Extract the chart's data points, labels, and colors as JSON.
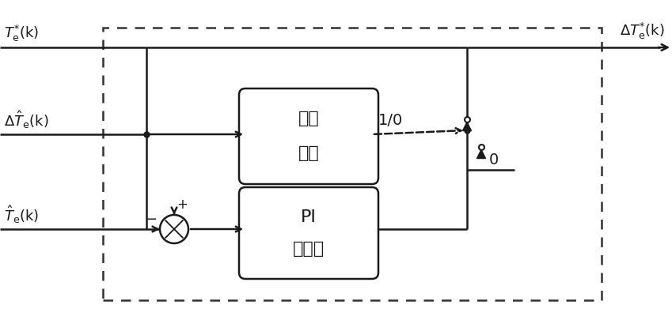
{
  "bg_color": "#ffffff",
  "line_color": "#1a1a1a",
  "label_Te_star": "$T_{e}^{*}\\mathrm{(k)}$",
  "label_delta_Te_hat": "$\\Delta\\hat{T}_{e}\\mathrm{(k)}$",
  "label_Te_hat": "$\\hat{T}_{e}\\mathrm{(k)}$",
  "label_delta_Te_star_out": "$\\Delta T_{e}^{*}\\mathrm{(k)}$",
  "label_fault_line1": "故障",
  "label_fault_line2": "判断",
  "label_pi_line1": "PI",
  "label_pi_line2": "调节器",
  "label_1_0": "1/0",
  "label_0": "0",
  "figsize": [
    8.49,
    4.0
  ],
  "dpi": 100
}
